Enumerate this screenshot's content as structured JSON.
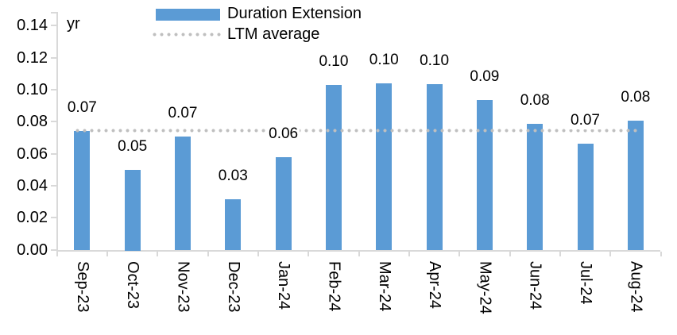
{
  "chart_data": {
    "type": "bar",
    "title": "",
    "unit_label": "yr",
    "categories": [
      "Sep-23",
      "Oct-23",
      "Nov-23",
      "Dec-23",
      "Jan-24",
      "Feb-24",
      "Mar-24",
      "Apr-24",
      "May-24",
      "Jun-24",
      "Jul-24",
      "Aug-24"
    ],
    "series": [
      {
        "name": "Duration Extension",
        "type": "bar",
        "color": "#5B9BD5",
        "values": [
          0.07,
          0.05,
          0.07,
          0.03,
          0.06,
          0.1,
          0.1,
          0.1,
          0.09,
          0.08,
          0.07,
          0.08
        ],
        "values_precise_estimate": [
          0.074,
          0.05,
          0.0705,
          0.0315,
          0.058,
          0.103,
          0.104,
          0.1035,
          0.0935,
          0.0785,
          0.0665,
          0.0805
        ],
        "data_labels": [
          "0.07",
          "0.05",
          "0.07",
          "0.03",
          "0.06",
          "0.10",
          "0.10",
          "0.10",
          "0.09",
          "0.08",
          "0.07",
          "0.08"
        ]
      },
      {
        "name": "LTM average",
        "type": "line",
        "line_style": "dotted",
        "color": "#BFBFBF",
        "value": 0.0745
      }
    ],
    "ylim": [
      0,
      0.14
    ],
    "ytick_step": 0.02,
    "ytick_labels": [
      "0.00",
      "0.02",
      "0.04",
      "0.06",
      "0.08",
      "0.10",
      "0.12",
      "0.14"
    ],
    "xlabel": "",
    "ylabel": "yr",
    "legend_position": "top-center",
    "grid": false,
    "axis_color": "#D9D9D9",
    "text_color": "#000000",
    "background_color": "#FFFFFF"
  }
}
